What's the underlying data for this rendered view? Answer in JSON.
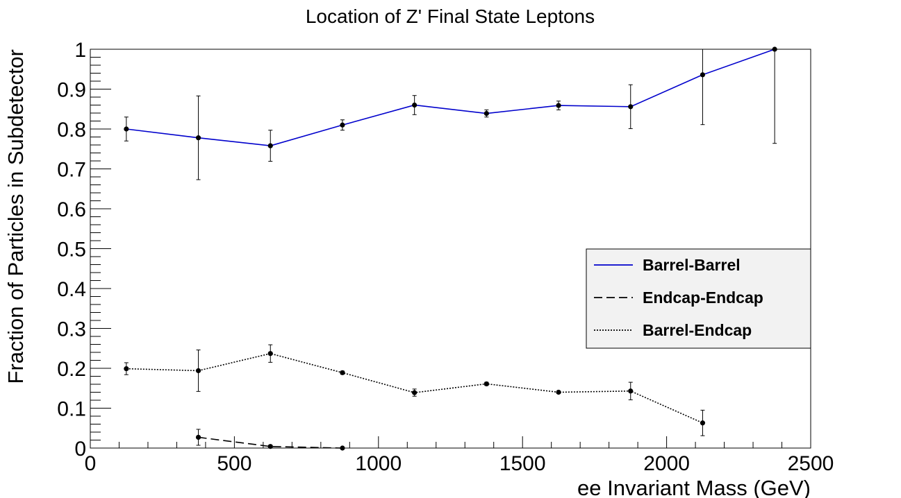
{
  "chart_data": {
    "type": "line",
    "title": "Location of Z' Final State Leptons",
    "xlabel": "ee Invariant Mass (GeV)",
    "ylabel": "Fraction of Particles in Subdetector",
    "xlim": [
      0,
      2500
    ],
    "ylim": [
      0,
      1
    ],
    "x_ticks": [
      "0",
      "500",
      "1000",
      "1500",
      "2000",
      "2500"
    ],
    "y_ticks": [
      "0",
      "0.1",
      "0.2",
      "0.3",
      "0.4",
      "0.5",
      "0.6",
      "0.7",
      "0.8",
      "0.9",
      "1"
    ],
    "grid": false,
    "legend_position": "right",
    "series": [
      {
        "name": "Barrel-Barrel",
        "color": "#0000cc",
        "style": "solid",
        "x": [
          125,
          375,
          625,
          875,
          1125,
          1375,
          1625,
          1875,
          2125,
          2375
        ],
        "y": [
          0.8,
          0.778,
          0.758,
          0.81,
          0.86,
          0.839,
          0.859,
          0.856,
          0.936,
          1.0
        ],
        "err": [
          0.03,
          0.105,
          0.039,
          0.013,
          0.024,
          0.009,
          0.011,
          0.055,
          0.125,
          0.236
        ]
      },
      {
        "name": "Endcap-Endcap",
        "color": "#000000",
        "style": "dashed",
        "x": [
          375,
          625,
          875
        ],
        "y": [
          0.027,
          0.004,
          0.0
        ],
        "err": [
          0.02,
          0.003,
          0.002
        ]
      },
      {
        "name": "Barrel-Endcap",
        "color": "#000000",
        "style": "dotted",
        "x": [
          125,
          375,
          625,
          875,
          1125,
          1375,
          1625,
          1875,
          2125
        ],
        "y": [
          0.199,
          0.194,
          0.237,
          0.189,
          0.139,
          0.161,
          0.14,
          0.143,
          0.063
        ],
        "err": [
          0.015,
          0.052,
          0.022,
          0.004,
          0.009,
          0.004,
          0.003,
          0.022,
          0.032
        ]
      }
    ]
  }
}
